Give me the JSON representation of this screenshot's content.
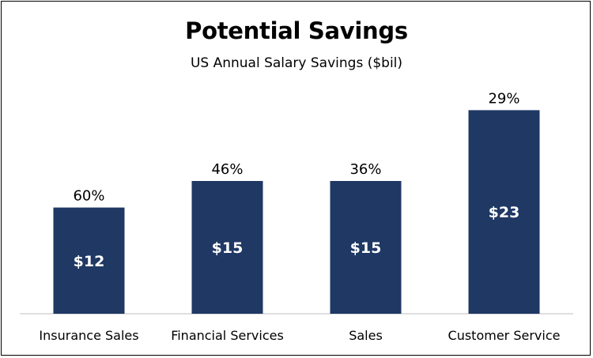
{
  "chart_data": {
    "type": "bar",
    "title": "Potential Savings",
    "subtitle": "US Annual Salary Savings ($bil)",
    "categories": [
      "Insurance Sales",
      "Financial Services",
      "Sales",
      "Customer Service"
    ],
    "values": [
      12,
      15,
      15,
      23
    ],
    "value_labels": [
      "$12",
      "$15",
      "$15",
      "$23"
    ],
    "percent_labels": [
      "60%",
      "46%",
      "36%",
      "29%"
    ],
    "ylim": [
      0,
      27
    ],
    "grid": false,
    "legend": "none",
    "bar_color": "#1f3864",
    "bar_label_color": "#ffffff"
  }
}
